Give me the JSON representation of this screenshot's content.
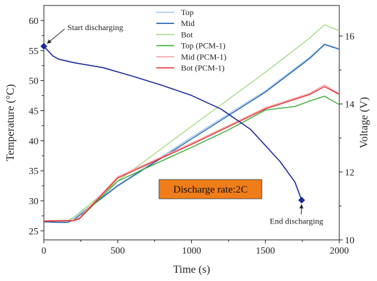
{
  "chart_data": {
    "type": "line",
    "x_axis": {
      "label": "Time (s)",
      "range": [
        0,
        2000
      ],
      "ticks": [
        0,
        500,
        1000,
        1500,
        2000
      ]
    },
    "y_left": {
      "label": "Temperature (°C)",
      "range": [
        23.5,
        62.5
      ],
      "ticks": [
        25,
        30,
        35,
        40,
        45,
        50,
        55,
        60
      ]
    },
    "y_right": {
      "label": "Voltage (V)",
      "range": [
        10,
        16.9
      ],
      "ticks": [
        10,
        12,
        14,
        16
      ]
    },
    "legend_position": "top-center",
    "series": [
      {
        "name": "Top",
        "axis": "left",
        "color": "#9ec6e8",
        "legend_marker": "line",
        "points": [
          [
            0,
            26.6
          ],
          [
            150,
            26.5
          ],
          [
            200,
            27.1
          ],
          [
            500,
            32.6
          ],
          [
            1000,
            40.6
          ],
          [
            1500,
            48.3
          ],
          [
            1800,
            53.9
          ],
          [
            1900,
            56.1
          ],
          [
            2000,
            55.3
          ]
        ]
      },
      {
        "name": "Mid",
        "axis": "left",
        "color": "#1f5fb0",
        "legend_marker": "line",
        "points": [
          [
            0,
            26.5
          ],
          [
            100,
            26.4
          ],
          [
            160,
            26.4
          ],
          [
            200,
            26.8
          ],
          [
            500,
            32.5
          ],
          [
            1000,
            40.3
          ],
          [
            1500,
            48.1
          ],
          [
            1800,
            53.7
          ],
          [
            1900,
            56.0
          ],
          [
            2000,
            55.2
          ]
        ]
      },
      {
        "name": "Bot",
        "axis": "left",
        "color": "#a6da86",
        "legend_marker": "line",
        "points": [
          [
            0,
            26.7
          ],
          [
            150,
            26.6
          ],
          [
            200,
            27.2
          ],
          [
            500,
            33.3
          ],
          [
            1000,
            42.4
          ],
          [
            1500,
            51.4
          ],
          [
            1800,
            57.1
          ],
          [
            1900,
            59.3
          ],
          [
            2000,
            58.3
          ]
        ]
      },
      {
        "name": "Top (PCM-1)",
        "axis": "left",
        "color": "#3aaa35",
        "legend_marker": "line",
        "points": [
          [
            0,
            26.6
          ],
          [
            200,
            26.7
          ],
          [
            240,
            27.0
          ],
          [
            500,
            33.3
          ],
          [
            1000,
            38.9
          ],
          [
            1250,
            41.8
          ],
          [
            1500,
            45.1
          ],
          [
            1700,
            45.7
          ],
          [
            1800,
            46.6
          ],
          [
            1900,
            47.4
          ],
          [
            2000,
            46.0
          ]
        ]
      },
      {
        "name": "Mid (PCM-1)",
        "axis": "left",
        "color": "#f4a5a5",
        "legend_marker": "line",
        "points": [
          [
            0,
            26.7
          ],
          [
            200,
            26.8
          ],
          [
            240,
            27.2
          ],
          [
            500,
            34.0
          ],
          [
            1000,
            39.6
          ],
          [
            1500,
            45.5
          ],
          [
            1800,
            47.9
          ],
          [
            1900,
            49.3
          ],
          [
            2000,
            47.8
          ]
        ]
      },
      {
        "name": "Bot (PCM-1)",
        "axis": "left",
        "color": "#e8262a",
        "legend_marker": "line",
        "points": [
          [
            0,
            26.6
          ],
          [
            200,
            26.7
          ],
          [
            240,
            27.0
          ],
          [
            500,
            33.8
          ],
          [
            1000,
            39.4
          ],
          [
            1500,
            45.3
          ],
          [
            1800,
            47.7
          ],
          [
            1900,
            49.0
          ],
          [
            2000,
            47.7
          ]
        ]
      },
      {
        "name": "",
        "axis": "right",
        "color": "#1a2a9a",
        "points": [
          [
            0,
            15.7
          ],
          [
            60,
            15.42
          ],
          [
            100,
            15.32
          ],
          [
            200,
            15.22
          ],
          [
            400,
            15.07
          ],
          [
            600,
            14.82
          ],
          [
            800,
            14.55
          ],
          [
            1000,
            14.25
          ],
          [
            1200,
            13.85
          ],
          [
            1400,
            13.25
          ],
          [
            1600,
            12.3
          ],
          [
            1700,
            11.7
          ],
          [
            1745,
            11.17
          ]
        ]
      }
    ],
    "markers": [
      {
        "x": 0,
        "y": 15.7,
        "axis": "right",
        "color": "#1a2a9a"
      },
      {
        "x": 1745,
        "y": 11.17,
        "axis": "right",
        "color": "#1a2a9a"
      }
    ],
    "annotations": [
      {
        "text": "Start discharging",
        "from": [
          0,
          15.7
        ],
        "text_at": [
          150,
          16.25
        ]
      },
      {
        "text": "End discharging",
        "from": [
          1745,
          11.17
        ],
        "text_at": [
          1520,
          10.55
        ]
      }
    ],
    "text_box": {
      "text": "Discharge rate:2C",
      "fill": "#f07d1a"
    }
  }
}
